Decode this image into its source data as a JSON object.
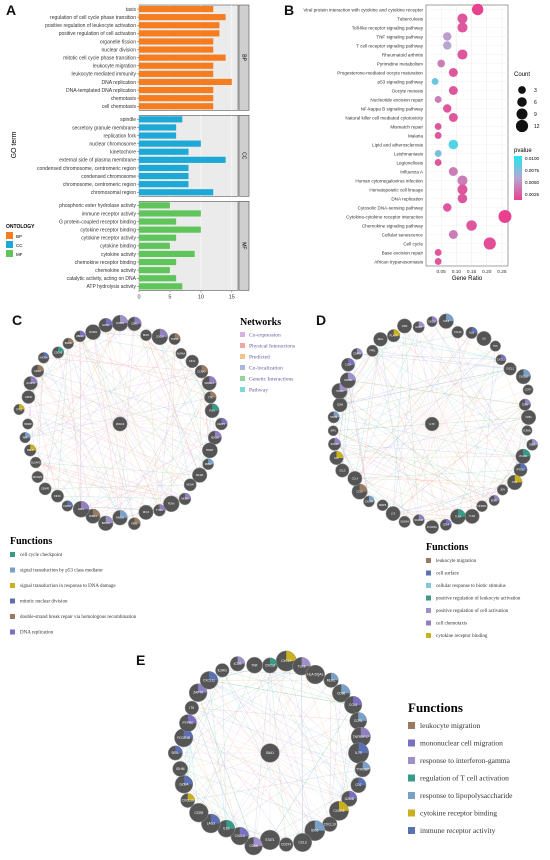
{
  "panel_labels": {
    "a": "A",
    "b": "B",
    "c": "C",
    "d": "D",
    "e": "E"
  },
  "chart_data": [
    {
      "type": "bar",
      "panel": "A",
      "orientation": "horizontal",
      "xlabel": "Count",
      "ylabel": "GO term",
      "xlim": [
        0,
        16
      ],
      "xticks": [
        0,
        5,
        10,
        15
      ],
      "facets": [
        {
          "name": "BP",
          "color": "#f57c1f",
          "categories": [
            "taxis",
            "regulation of cell cycle phase transition",
            "positive regulation of leukocyte activation",
            "positive regulation of cell activation",
            "organelle fission",
            "nuclear division",
            "mitotic cell cycle phase transition",
            "leukocyte migration",
            "leukocyte mediated immunity",
            "DNA replication",
            "DNA-templated DNA replication",
            "chemotaxis",
            "cell chemotaxis"
          ],
          "values": [
            12,
            14,
            13,
            13,
            12,
            12,
            14,
            12,
            12,
            15,
            12,
            12,
            12
          ]
        },
        {
          "name": "CC",
          "color": "#1ca9d6",
          "categories": [
            "spindle",
            "secretory granule membrane",
            "replication fork",
            "nuclear chromosome",
            "kinetochore",
            "external side of plasma membrane",
            "condensed chromosome, centromeric region",
            "condensed chromosome",
            "chromosome, centromeric region",
            "chromosomal region"
          ],
          "values": [
            7,
            6,
            6,
            10,
            8,
            14,
            8,
            8,
            8,
            12
          ]
        },
        {
          "name": "MF",
          "color": "#5fc45a",
          "categories": [
            "phosphoric ester hydrolase activity",
            "immune receptor activity",
            "G protein-coupled receptor binding",
            "cytokine receptor binding",
            "cytokine receptor activity",
            "cytokine binding",
            "cytokine activity",
            "chemokine receptor binding",
            "chemokine activity",
            "catalytic activity, acting on DNA",
            "ATP hydrolysis activity"
          ],
          "values": [
            5,
            10,
            6,
            10,
            6,
            5,
            9,
            6,
            5,
            6,
            7
          ]
        }
      ],
      "legend": {
        "title": "ONTOLOGY",
        "entries": [
          "BP",
          "CC",
          "MF"
        ],
        "position": "bottom-left"
      }
    },
    {
      "type": "scatter",
      "panel": "B",
      "xlabel": "Gene Ratio",
      "xlim": [
        0.0,
        0.27
      ],
      "xticks": [
        0.05,
        0.1,
        0.15,
        0.2,
        0.25
      ],
      "xtick_labels": [
        "0.05",
        "0.10",
        "0.15",
        "0.20",
        "0.25"
      ],
      "size_legend": {
        "title": "Count",
        "values": [
          3,
          6,
          9,
          12
        ]
      },
      "color_legend": {
        "title": "pvalue",
        "ticks": [
          "0.0100",
          "0.0075",
          "0.0050",
          "0.0025"
        ],
        "range": [
          0.001,
          0.011
        ],
        "low_color": "#e8428f",
        "high_color": "#21e6f0"
      },
      "points": [
        {
          "term": "Viral protein interaction with cytokine and cytokine receptor",
          "x": 0.17,
          "count": 10,
          "p": 0.001
        },
        {
          "term": "Tuberculosis",
          "x": 0.12,
          "count": 7,
          "p": 0.002
        },
        {
          "term": "Toll-like receptor signaling pathway",
          "x": 0.12,
          "count": 7,
          "p": 0.002
        },
        {
          "term": "TNF signaling pathway",
          "x": 0.07,
          "count": 4,
          "p": 0.0055
        },
        {
          "term": "T cell receptor signaling pathway",
          "x": 0.07,
          "count": 4,
          "p": 0.006
        },
        {
          "term": "Rheumatoid arthritis",
          "x": 0.12,
          "count": 7,
          "p": 0.002
        },
        {
          "term": "Pyrimidine metabolism",
          "x": 0.05,
          "count": 3,
          "p": 0.004
        },
        {
          "term": "Progesterone-mediated oocyte maturation",
          "x": 0.09,
          "count": 5,
          "p": 0.002
        },
        {
          "term": "p53 signaling pathway",
          "x": 0.03,
          "count": 2,
          "p": 0.0085
        },
        {
          "term": "Oocyte meiosis",
          "x": 0.09,
          "count": 5,
          "p": 0.002
        },
        {
          "term": "Nucleotide excision repair",
          "x": 0.04,
          "count": 2,
          "p": 0.004
        },
        {
          "term": "NF-kappa B signaling pathway",
          "x": 0.07,
          "count": 4,
          "p": 0.002
        },
        {
          "term": "Natural killer cell mediated cytotoxicity",
          "x": 0.09,
          "count": 5,
          "p": 0.002
        },
        {
          "term": "Mismatch repair",
          "x": 0.04,
          "count": 2,
          "p": 0.002
        },
        {
          "term": "Malaria",
          "x": 0.04,
          "count": 2,
          "p": 0.002
        },
        {
          "term": "Lipid and atherosclerosis",
          "x": 0.09,
          "count": 6,
          "p": 0.0095
        },
        {
          "term": "Leishmaniasis",
          "x": 0.04,
          "count": 2,
          "p": 0.008
        },
        {
          "term": "Legionellosis",
          "x": 0.04,
          "count": 2,
          "p": 0.002
        },
        {
          "term": "Influenza A",
          "x": 0.09,
          "count": 5,
          "p": 0.004
        },
        {
          "term": "Human cytomegalovirus infection",
          "x": 0.12,
          "count": 7,
          "p": 0.004
        },
        {
          "term": "Hematopoietic cell lineage",
          "x": 0.12,
          "count": 7,
          "p": 0.002
        },
        {
          "term": "DNA replication",
          "x": 0.12,
          "count": 6,
          "p": 0.002
        },
        {
          "term": "Cytosolic DNA-sensing pathway",
          "x": 0.07,
          "count": 4,
          "p": 0.002
        },
        {
          "term": "Cytokine-cytokine receptor interaction",
          "x": 0.26,
          "count": 14,
          "p": 0.001
        },
        {
          "term": "Chemokine signaling pathway",
          "x": 0.15,
          "count": 8,
          "p": 0.002
        },
        {
          "term": "Cellular senescence",
          "x": 0.09,
          "count": 5,
          "p": 0.004
        },
        {
          "term": "Cell cycle",
          "x": 0.21,
          "count": 12,
          "p": 0.0015
        },
        {
          "term": "Base excision repair",
          "x": 0.04,
          "count": 2,
          "p": 0.002
        },
        {
          "term": "African trypanosomiasis",
          "x": 0.04,
          "count": 2,
          "p": 0.002
        }
      ]
    }
  ],
  "network_legend": {
    "title": "Networks",
    "items": [
      {
        "label": "Co-expression",
        "color": "#d9b0e3"
      },
      {
        "label": "Physical Interactions",
        "color": "#f4a5a5"
      },
      {
        "label": "Predicted",
        "color": "#f0c48a"
      },
      {
        "label": "Co-localization",
        "color": "#a9b8e0"
      },
      {
        "label": "Genetic Interactions",
        "color": "#8fd6a4"
      },
      {
        "label": "Pathway",
        "color": "#7fd8d8"
      }
    ]
  },
  "functions_c": {
    "title": "Functions",
    "items": [
      {
        "label": "cell cycle checkpoint",
        "color": "#3a9a8a"
      },
      {
        "label": "signal transduction by p53 class mediator",
        "color": "#7aa0c8"
      },
      {
        "label": "signal transduction in response to DNA damage",
        "color": "#c8b020"
      },
      {
        "label": "mitotic nuclear division",
        "color": "#5a70b0"
      },
      {
        "label": "double-strand break repair via homologous recombination",
        "color": "#9a7a60"
      },
      {
        "label": "DNA replication",
        "color": "#7a70c0"
      }
    ]
  },
  "functions_d": {
    "title": "Functions",
    "items": [
      {
        "label": "leukocyte migration",
        "color": "#9a7a60"
      },
      {
        "label": "cell surface",
        "color": "#5a70b0"
      },
      {
        "label": "cellular response to biotic stimulus",
        "color": "#7fc8d8"
      },
      {
        "label": "positive regulation of leukocyte activation",
        "color": "#3a9a8a"
      },
      {
        "label": "positive regulation of cell activation",
        "color": "#a090c8"
      },
      {
        "label": "cell chemotaxis",
        "color": "#9080c0"
      },
      {
        "label": "cytokine receptor binding",
        "color": "#c8b020"
      }
    ]
  },
  "functions_e": {
    "title": "Functions",
    "items": [
      {
        "label": "leukocyte migration",
        "color": "#9a7a60"
      },
      {
        "label": "mononuclear cell migration",
        "color": "#7a70c0"
      },
      {
        "label": "response to interferon-gamma",
        "color": "#a090c8"
      },
      {
        "label": "regulation of T cell activation",
        "color": "#3a9a8a"
      },
      {
        "label": "response to lipopolysaccharide",
        "color": "#7aa0c8"
      },
      {
        "label": "cytokine receptor binding",
        "color": "#c8b020"
      },
      {
        "label": "immune receptor activity",
        "color": "#5a70b0"
      }
    ]
  },
  "network_c": {
    "nodes": [
      "CCNB1",
      "CDK1",
      "BUB1",
      "CDC20",
      "TOP2A",
      "AURKA",
      "KIF11",
      "CCNA2",
      "MAD2L1",
      "TTK",
      "PLK1",
      "CENPF",
      "NDC80",
      "ZWINT",
      "RRM2",
      "MCM2",
      "MCM4",
      "MCM6",
      "PCNA",
      "TYMS",
      "RFC4",
      "FEN1",
      "RAD51",
      "BRCA1",
      "CHEK1",
      "E2F1",
      "CDKN3",
      "KIF2C",
      "CENPE",
      "NUSAP1",
      "DLGAP5",
      "MELK",
      "PBK",
      "HMMR",
      "TPX2",
      "ASPM",
      "NCAPG",
      "KIF4A",
      "KIF20A",
      "CDCA8",
      "BIRC5",
      "UBE2C",
      "CCNB2",
      "GINS2"
    ],
    "center": "MCM10"
  },
  "network_d": {
    "nodes": [
      "CXCL8",
      "CCL2",
      "CCL20",
      "IL1B",
      "IL6",
      "TNF",
      "CXCL1",
      "CXCL2",
      "CXCL10",
      "CCR7",
      "CD69",
      "CD83",
      "ICAM1",
      "SELE",
      "VCAM1",
      "PTGS2",
      "FOS",
      "JUN",
      "EGR1",
      "NFKBIA",
      "TLR2",
      "TLR4",
      "CD14",
      "FCGR3A",
      "S100A8",
      "S100A9",
      "LYZ",
      "MMP9",
      "CXCR4",
      "CCL3",
      "CCL4",
      "CCL5",
      "IL10",
      "SOCS3",
      "IRF1",
      "STAT1",
      "CD86",
      "ITGAM",
      "CSF1R",
      "C1QA",
      "C3AR1",
      "FPR1",
      "SELL",
      "PLAUR",
      "OSM",
      "IL1RN"
    ],
    "center": "IL7R"
  },
  "network_e": {
    "nodes": [
      "CXCL8",
      "CXCL9",
      "TLR8",
      "HLA-DQA1",
      "MLKL",
      "CD86",
      "CCL5",
      "CCR1",
      "TNFRSF17",
      "IL7R",
      "TYROBP",
      "CD2",
      "GZMB",
      "CXCR6",
      "CXCL10",
      "IDO1",
      "CCL3",
      "CD274",
      "STAT1",
      "CD8A",
      "CXCL6",
      "IL1B",
      "LAG3",
      "CCR5",
      "CXCL13",
      "GZMA",
      "IGHM",
      "SELL",
      "FCGR3B",
      "PTPRC",
      "ITK",
      "ZAP70",
      "CXCL11",
      "IL2RG",
      "ICOS",
      "TNF"
    ],
    "center": "SAA1"
  }
}
